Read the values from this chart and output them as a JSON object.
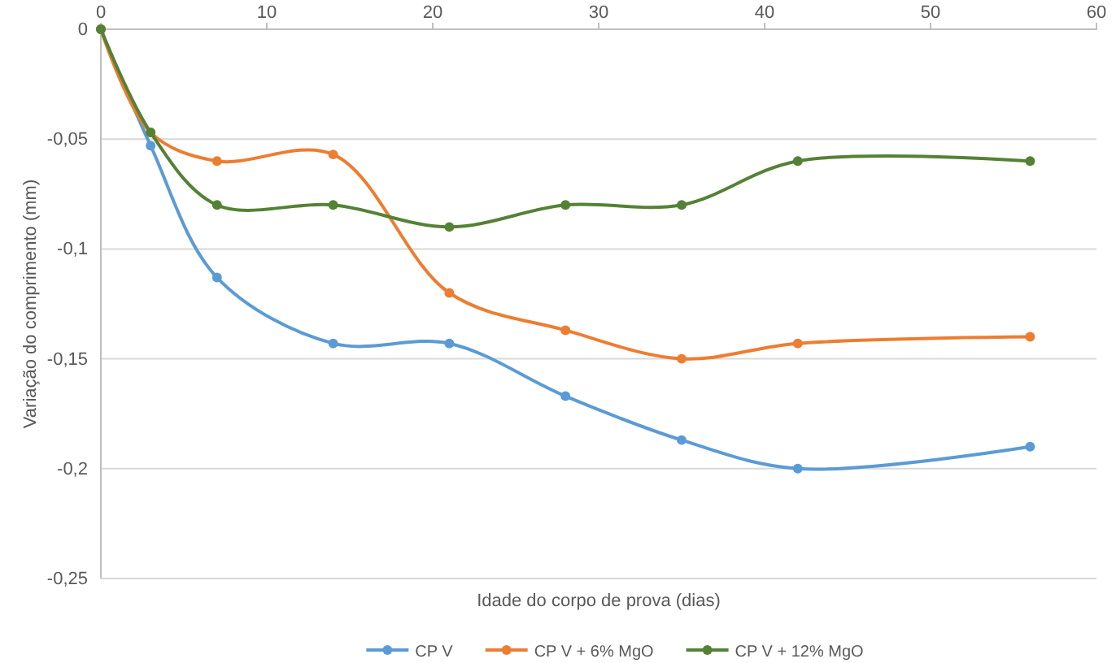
{
  "chart_data": {
    "type": "line",
    "xlabel": "Idade do corpo de prova (dias)",
    "ylabel": "Variação do comprimento (mm)",
    "x": [
      0,
      3,
      7,
      14,
      21,
      28,
      35,
      42,
      56
    ],
    "series": [
      {
        "name": "CP V",
        "color": "#5b9bd5",
        "values": [
          0,
          -0.053,
          -0.113,
          -0.143,
          -0.143,
          -0.167,
          -0.187,
          -0.2,
          -0.19
        ]
      },
      {
        "name": "CP V + 6% MgO",
        "color": "#ed7d31",
        "values": [
          0,
          -0.047,
          -0.06,
          -0.057,
          -0.12,
          -0.137,
          -0.15,
          -0.143,
          -0.14
        ]
      },
      {
        "name": "CP V + 12% MgO",
        "color": "#548235",
        "values": [
          0,
          -0.047,
          -0.08,
          -0.08,
          -0.09,
          -0.08,
          -0.08,
          -0.06,
          -0.06
        ]
      }
    ],
    "xlim": [
      0,
      60
    ],
    "xticks": [
      0,
      10,
      20,
      30,
      40,
      50,
      60
    ],
    "ylim": [
      -0.25,
      0
    ],
    "yticks": [
      {
        "value": 0,
        "label": "0"
      },
      {
        "value": -0.05,
        "label": "-0,05"
      },
      {
        "value": -0.1,
        "label": "-0,1"
      },
      {
        "value": -0.15,
        "label": "-0,15"
      },
      {
        "value": -0.2,
        "label": "-0,2"
      },
      {
        "value": -0.25,
        "label": "-0,25"
      }
    ],
    "grid": "y",
    "legend": "bottom",
    "marker": "circle",
    "line_style": "solid"
  }
}
